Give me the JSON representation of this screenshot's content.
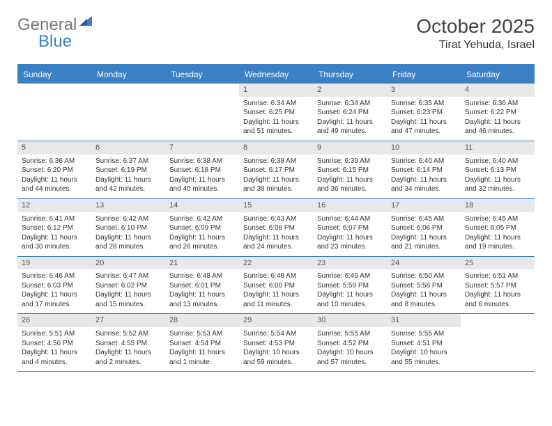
{
  "brand": {
    "part1": "General",
    "part2": "Blue"
  },
  "colors": {
    "accent": "#3b7fc4",
    "header_text": "#ffffff",
    "daynum_bg": "#e8e8e8",
    "text": "#444444"
  },
  "title": "October 2025",
  "location": "Tirat Yehuda, Israel",
  "day_labels": [
    "Sunday",
    "Monday",
    "Tuesday",
    "Wednesday",
    "Thursday",
    "Friday",
    "Saturday"
  ],
  "layout": {
    "columns": 7,
    "rows": 5,
    "cell_fontsize": 10,
    "header_fontsize": 12,
    "title_fontsize": 28
  },
  "weeks": [
    [
      {
        "n": "",
        "sr": "",
        "ss": "",
        "dl": ""
      },
      {
        "n": "",
        "sr": "",
        "ss": "",
        "dl": ""
      },
      {
        "n": "",
        "sr": "",
        "ss": "",
        "dl": ""
      },
      {
        "n": "1",
        "sr": "Sunrise: 6:34 AM",
        "ss": "Sunset: 6:25 PM",
        "dl": "Daylight: 11 hours and 51 minutes."
      },
      {
        "n": "2",
        "sr": "Sunrise: 6:34 AM",
        "ss": "Sunset: 6:24 PM",
        "dl": "Daylight: 11 hours and 49 minutes."
      },
      {
        "n": "3",
        "sr": "Sunrise: 6:35 AM",
        "ss": "Sunset: 6:23 PM",
        "dl": "Daylight: 11 hours and 47 minutes."
      },
      {
        "n": "4",
        "sr": "Sunrise: 6:36 AM",
        "ss": "Sunset: 6:22 PM",
        "dl": "Daylight: 11 hours and 46 minutes."
      }
    ],
    [
      {
        "n": "5",
        "sr": "Sunrise: 6:36 AM",
        "ss": "Sunset: 6:20 PM",
        "dl": "Daylight: 11 hours and 44 minutes."
      },
      {
        "n": "6",
        "sr": "Sunrise: 6:37 AM",
        "ss": "Sunset: 6:19 PM",
        "dl": "Daylight: 11 hours and 42 minutes."
      },
      {
        "n": "7",
        "sr": "Sunrise: 6:38 AM",
        "ss": "Sunset: 6:18 PM",
        "dl": "Daylight: 11 hours and 40 minutes."
      },
      {
        "n": "8",
        "sr": "Sunrise: 6:38 AM",
        "ss": "Sunset: 6:17 PM",
        "dl": "Daylight: 11 hours and 38 minutes."
      },
      {
        "n": "9",
        "sr": "Sunrise: 6:39 AM",
        "ss": "Sunset: 6:15 PM",
        "dl": "Daylight: 11 hours and 36 minutes."
      },
      {
        "n": "10",
        "sr": "Sunrise: 6:40 AM",
        "ss": "Sunset: 6:14 PM",
        "dl": "Daylight: 11 hours and 34 minutes."
      },
      {
        "n": "11",
        "sr": "Sunrise: 6:40 AM",
        "ss": "Sunset: 6:13 PM",
        "dl": "Daylight: 11 hours and 32 minutes."
      }
    ],
    [
      {
        "n": "12",
        "sr": "Sunrise: 6:41 AM",
        "ss": "Sunset: 6:12 PM",
        "dl": "Daylight: 11 hours and 30 minutes."
      },
      {
        "n": "13",
        "sr": "Sunrise: 6:42 AM",
        "ss": "Sunset: 6:10 PM",
        "dl": "Daylight: 11 hours and 28 minutes."
      },
      {
        "n": "14",
        "sr": "Sunrise: 6:42 AM",
        "ss": "Sunset: 6:09 PM",
        "dl": "Daylight: 11 hours and 26 minutes."
      },
      {
        "n": "15",
        "sr": "Sunrise: 6:43 AM",
        "ss": "Sunset: 6:08 PM",
        "dl": "Daylight: 11 hours and 24 minutes."
      },
      {
        "n": "16",
        "sr": "Sunrise: 6:44 AM",
        "ss": "Sunset: 6:07 PM",
        "dl": "Daylight: 11 hours and 23 minutes."
      },
      {
        "n": "17",
        "sr": "Sunrise: 6:45 AM",
        "ss": "Sunset: 6:06 PM",
        "dl": "Daylight: 11 hours and 21 minutes."
      },
      {
        "n": "18",
        "sr": "Sunrise: 6:45 AM",
        "ss": "Sunset: 6:05 PM",
        "dl": "Daylight: 11 hours and 19 minutes."
      }
    ],
    [
      {
        "n": "19",
        "sr": "Sunrise: 6:46 AM",
        "ss": "Sunset: 6:03 PM",
        "dl": "Daylight: 11 hours and 17 minutes."
      },
      {
        "n": "20",
        "sr": "Sunrise: 6:47 AM",
        "ss": "Sunset: 6:02 PM",
        "dl": "Daylight: 11 hours and 15 minutes."
      },
      {
        "n": "21",
        "sr": "Sunrise: 6:48 AM",
        "ss": "Sunset: 6:01 PM",
        "dl": "Daylight: 11 hours and 13 minutes."
      },
      {
        "n": "22",
        "sr": "Sunrise: 6:48 AM",
        "ss": "Sunset: 6:00 PM",
        "dl": "Daylight: 11 hours and 11 minutes."
      },
      {
        "n": "23",
        "sr": "Sunrise: 6:49 AM",
        "ss": "Sunset: 5:59 PM",
        "dl": "Daylight: 11 hours and 10 minutes."
      },
      {
        "n": "24",
        "sr": "Sunrise: 6:50 AM",
        "ss": "Sunset: 5:58 PM",
        "dl": "Daylight: 11 hours and 8 minutes."
      },
      {
        "n": "25",
        "sr": "Sunrise: 6:51 AM",
        "ss": "Sunset: 5:57 PM",
        "dl": "Daylight: 11 hours and 6 minutes."
      }
    ],
    [
      {
        "n": "26",
        "sr": "Sunrise: 5:51 AM",
        "ss": "Sunset: 4:56 PM",
        "dl": "Daylight: 11 hours and 4 minutes."
      },
      {
        "n": "27",
        "sr": "Sunrise: 5:52 AM",
        "ss": "Sunset: 4:55 PM",
        "dl": "Daylight: 11 hours and 2 minutes."
      },
      {
        "n": "28",
        "sr": "Sunrise: 5:53 AM",
        "ss": "Sunset: 4:54 PM",
        "dl": "Daylight: 11 hours and 1 minute."
      },
      {
        "n": "29",
        "sr": "Sunrise: 5:54 AM",
        "ss": "Sunset: 4:53 PM",
        "dl": "Daylight: 10 hours and 59 minutes."
      },
      {
        "n": "30",
        "sr": "Sunrise: 5:55 AM",
        "ss": "Sunset: 4:52 PM",
        "dl": "Daylight: 10 hours and 57 minutes."
      },
      {
        "n": "31",
        "sr": "Sunrise: 5:55 AM",
        "ss": "Sunset: 4:51 PM",
        "dl": "Daylight: 10 hours and 55 minutes."
      },
      {
        "n": "",
        "sr": "",
        "ss": "",
        "dl": ""
      }
    ]
  ]
}
